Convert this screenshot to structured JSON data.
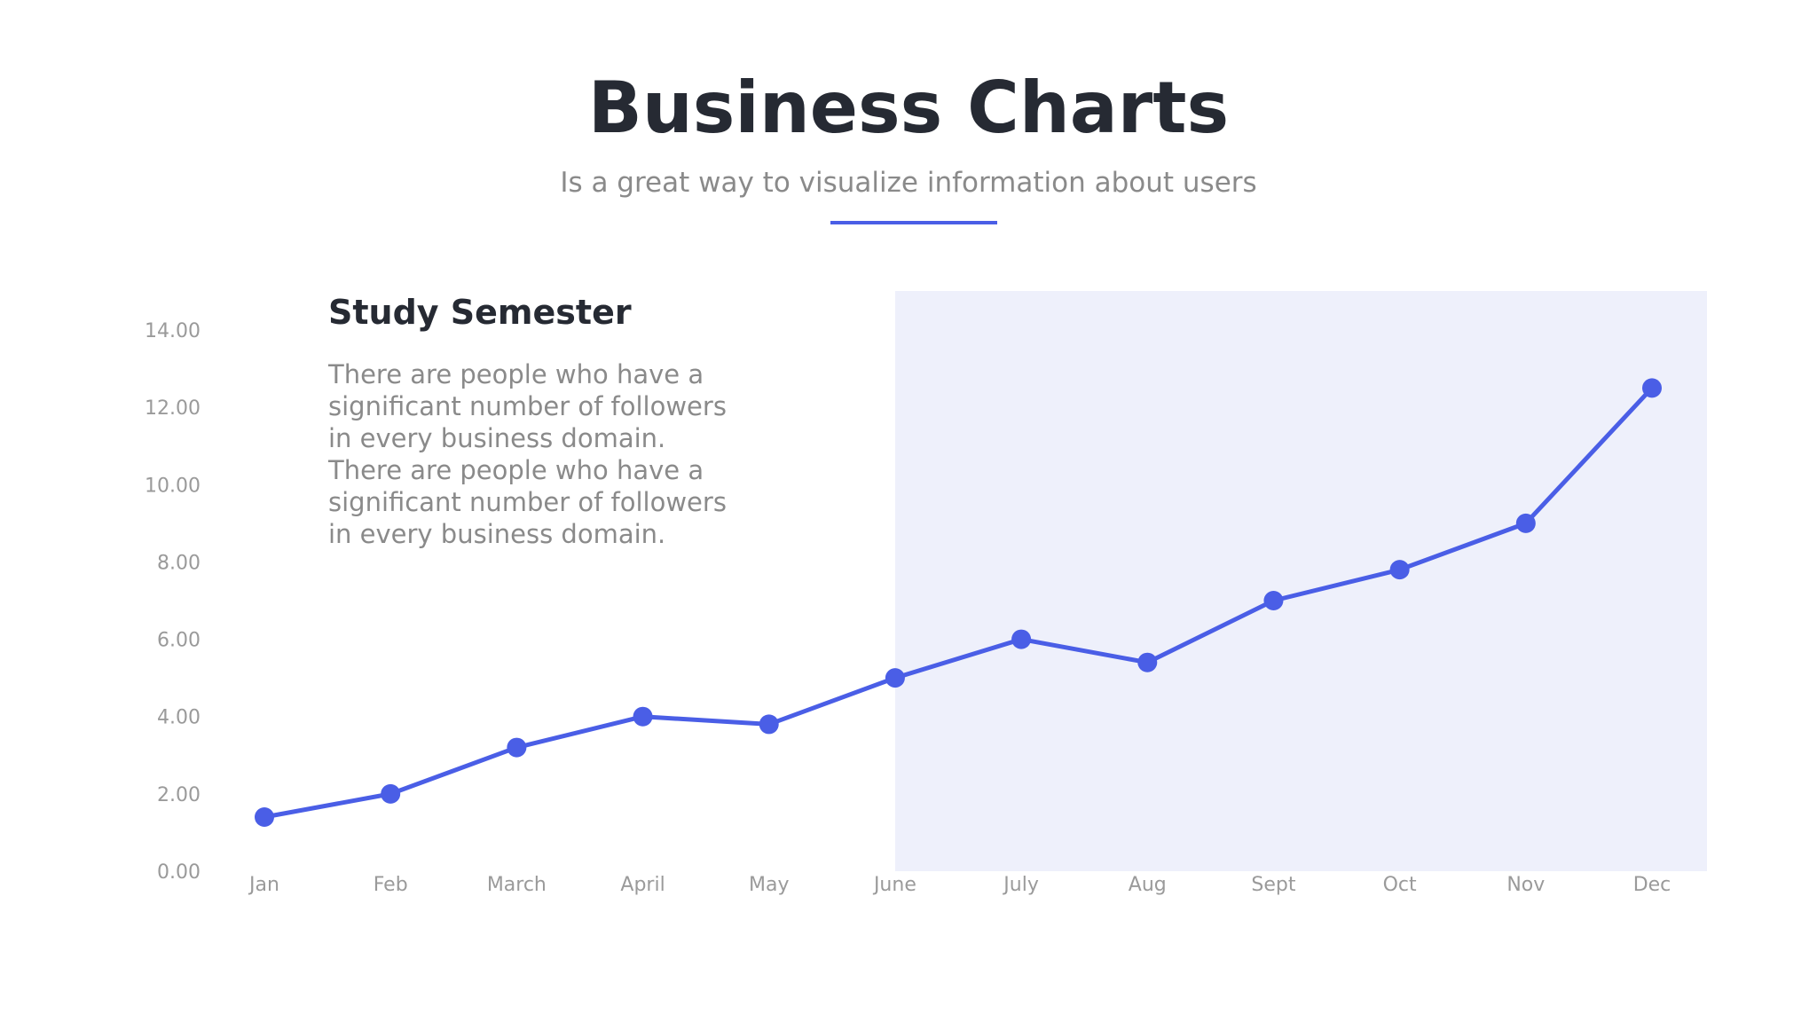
{
  "header": {
    "title": "Business Charts",
    "subtitle": "Is a great way to visualize information about users"
  },
  "panel": {
    "title": "Study Semester",
    "lines": [
      "There are people who have a",
      "significant number of followers",
      "in every business domain.",
      "There are people who have a",
      "significant number of followers",
      "in every business domain."
    ]
  },
  "colors": {
    "accent": "#4a5ee6",
    "highlight": "#eef0fb",
    "title": "#262a33",
    "muted": "#8a8a8a"
  },
  "chart_data": {
    "type": "line",
    "categories": [
      "Jan",
      "Feb",
      "March",
      "April",
      "May",
      "June",
      "July",
      "Aug",
      "Sept",
      "Oct",
      "Nov",
      "Dec"
    ],
    "values": [
      1.4,
      2.0,
      3.2,
      4.0,
      3.8,
      5.0,
      6.0,
      5.4,
      7.0,
      7.8,
      9.0,
      12.5
    ],
    "y_ticks": [
      "0.00",
      "2.00",
      "4.00",
      "6.00",
      "8.00",
      "10.00",
      "12.00",
      "14.00"
    ],
    "ylim": [
      0,
      14
    ],
    "highlight_range": [
      "June",
      "Dec"
    ],
    "grid": false,
    "legend": "none"
  }
}
